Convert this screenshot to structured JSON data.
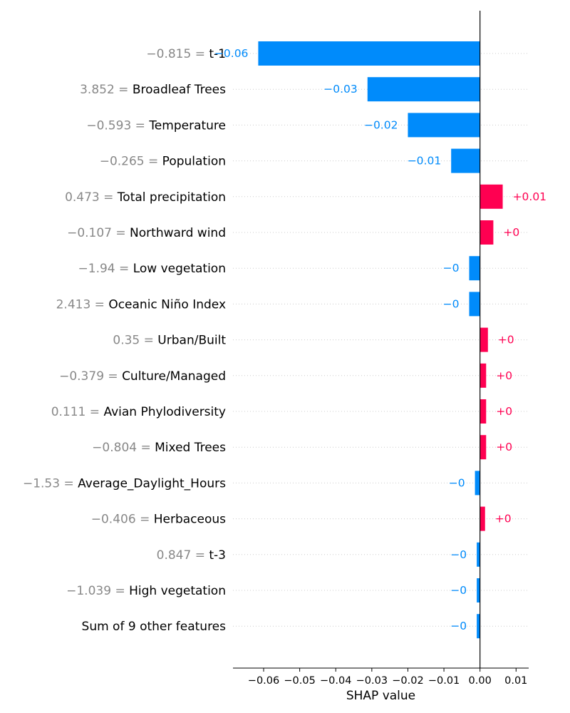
{
  "chart_data": {
    "type": "bar",
    "orientation": "horizontal",
    "xlabel": "SHAP value",
    "xlim": [
      -0.0685,
      0.0135
    ],
    "x_ticks": [
      -0.06,
      -0.05,
      -0.04,
      -0.03,
      -0.02,
      -0.01,
      0.0,
      0.01
    ],
    "x_tick_labels": [
      "−0.06",
      "−0.05",
      "−0.04",
      "−0.03",
      "−0.02",
      "−0.01",
      "0.00",
      "0.01"
    ],
    "colors": {
      "positive": "#ff0051",
      "negative": "#008bfb",
      "feature_value": "#888888",
      "gridline": "#cccccc"
    },
    "features": [
      {
        "name": "t-1",
        "feature_value": "−0.815",
        "shap": -0.0615,
        "label": "−0.06"
      },
      {
        "name": "Broadleaf Trees",
        "feature_value": "3.852",
        "shap": -0.0312,
        "label": "−0.03"
      },
      {
        "name": "Temperature",
        "feature_value": "−0.593",
        "shap": -0.02,
        "label": "−0.02"
      },
      {
        "name": "Population",
        "feature_value": "−0.265",
        "shap": -0.008,
        "label": "−0.01"
      },
      {
        "name": "Total precipitation",
        "feature_value": "0.473",
        "shap": 0.0063,
        "label": "+0.01"
      },
      {
        "name": "Northward wind",
        "feature_value": "−0.107",
        "shap": 0.0037,
        "label": "+0"
      },
      {
        "name": "Low vegetation",
        "feature_value": "−1.94",
        "shap": -0.003,
        "label": "−0"
      },
      {
        "name": "Oceanic Niño Index",
        "feature_value": "2.413",
        "shap": -0.003,
        "label": "−0"
      },
      {
        "name": "Urban/Built",
        "feature_value": "0.35",
        "shap": 0.0022,
        "label": "+0"
      },
      {
        "name": "Culture/Managed",
        "feature_value": "−0.379",
        "shap": 0.0017,
        "label": "+0"
      },
      {
        "name": "Avian Phylodiversity",
        "feature_value": "0.111",
        "shap": 0.0017,
        "label": "+0"
      },
      {
        "name": "Mixed Trees",
        "feature_value": "−0.804",
        "shap": 0.0017,
        "label": "+0"
      },
      {
        "name": "Average_Daylight_Hours",
        "feature_value": "−1.53",
        "shap": -0.0014,
        "label": "−0"
      },
      {
        "name": "Herbaceous",
        "feature_value": "−0.406",
        "shap": 0.0014,
        "label": "+0"
      },
      {
        "name": "t-3",
        "feature_value": "0.847",
        "shap": -0.0009,
        "label": "−0"
      },
      {
        "name": "High vegetation",
        "feature_value": "−1.039",
        "shap": -0.0009,
        "label": "−0"
      },
      {
        "name": "Sum of 9 other features",
        "feature_value": "",
        "shap": -0.0009,
        "label": "−0"
      }
    ]
  }
}
